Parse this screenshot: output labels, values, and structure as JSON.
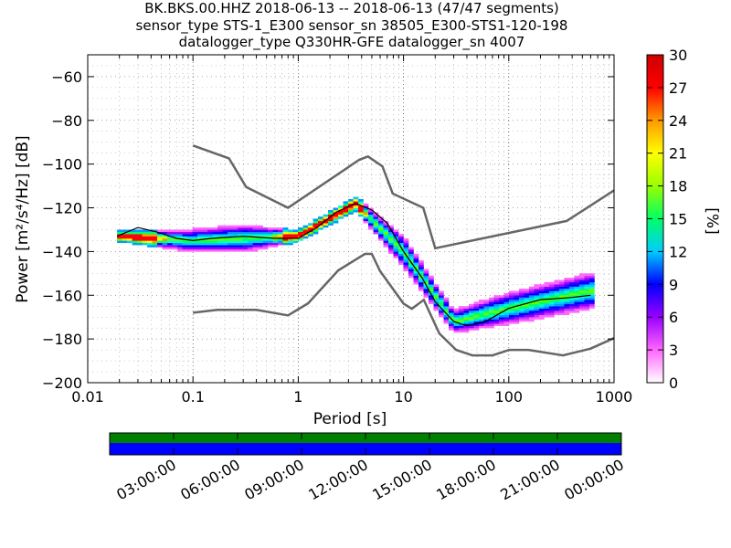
{
  "header": {
    "title_line1": "BK.BKS.00.HHZ   2018-06-13 -- 2018-06-13  (47/47 segments)",
    "title_line2": "sensor_type STS-1_E300 sensor_sn 38505_E300-STS1-120-198",
    "title_line3": "datalogger_type Q330HR-GFE datalogger_sn 4007"
  },
  "chart_data": {
    "type": "heatmap",
    "title": "BK.BKS.00.HHZ 2018-06-13 -- 2018-06-13 (47/47 segments)",
    "xlabel": "Period [s]",
    "ylabel": "Power [m²/s⁴/Hz] [dB]",
    "xscale": "log",
    "xlim": [
      0.01,
      1000
    ],
    "ylim": [
      -200,
      -50
    ],
    "x_ticks": [
      0.01,
      0.1,
      1,
      10,
      100,
      1000
    ],
    "x_tick_labels": [
      "0.01",
      "0.1",
      "1",
      "10",
      "100",
      "1000"
    ],
    "y_ticks": [
      -200,
      -180,
      -160,
      -140,
      -120,
      -100,
      -80,
      -60
    ],
    "y_tick_labels": [
      "−200",
      "−180",
      "−160",
      "−140",
      "−120",
      "−100",
      "−80",
      "−60"
    ],
    "grid": true,
    "colorbar": {
      "label": "[%]",
      "range": [
        0,
        30
      ],
      "ticks": [
        "0",
        "3",
        "6",
        "9",
        "12",
        "15",
        "18",
        "21",
        "24",
        "27",
        "30"
      ],
      "stops": [
        "#ffffff",
        "#ff66ff",
        "#9900ff",
        "#0000ff",
        "#00ccff",
        "#00ff66",
        "#99ff00",
        "#ffff00",
        "#ff9900",
        "#ff0000",
        "#cc0000"
      ]
    },
    "nhnm_high_noise_model": [
      [
        0.1,
        -91.5
      ],
      [
        0.22,
        -97.4
      ],
      [
        0.32,
        -110.5
      ],
      [
        0.8,
        -120
      ],
      [
        3.8,
        -98
      ],
      [
        4.6,
        -96.5
      ],
      [
        6.3,
        -101
      ],
      [
        7.9,
        -113.5
      ],
      [
        15.4,
        -120
      ],
      [
        20,
        -138.5
      ],
      [
        354.8,
        -126
      ],
      [
        1000,
        -112
      ]
    ],
    "nlnm_low_noise_model": [
      [
        0.1,
        -168
      ],
      [
        0.17,
        -166.7
      ],
      [
        0.4,
        -166.7
      ],
      [
        0.8,
        -169.2
      ],
      [
        1.24,
        -163.7
      ],
      [
        2.4,
        -148.6
      ],
      [
        4.3,
        -141.1
      ],
      [
        5.0,
        -141.1
      ],
      [
        6.0,
        -149
      ],
      [
        10,
        -163.8
      ],
      [
        12,
        -166.2
      ],
      [
        15.6,
        -162.1
      ],
      [
        21.9,
        -177.5
      ],
      [
        31.6,
        -185
      ],
      [
        45,
        -187.5
      ],
      [
        70,
        -187.5
      ],
      [
        101,
        -185
      ],
      [
        154,
        -185
      ],
      [
        328,
        -187.5
      ],
      [
        600,
        -184.4
      ],
      [
        1000,
        -179.6
      ]
    ],
    "mode_curve": [
      [
        0.019,
        -133
      ],
      [
        0.03,
        -129
      ],
      [
        0.045,
        -131
      ],
      [
        0.07,
        -134
      ],
      [
        0.1,
        -135
      ],
      [
        0.15,
        -134
      ],
      [
        0.3,
        -133
      ],
      [
        0.6,
        -134
      ],
      [
        1.0,
        -134
      ],
      [
        1.5,
        -129
      ],
      [
        2.3,
        -122
      ],
      [
        3.5,
        -118
      ],
      [
        5.0,
        -121
      ],
      [
        7.0,
        -127
      ],
      [
        10,
        -140
      ],
      [
        15,
        -152
      ],
      [
        20,
        -163
      ],
      [
        30,
        -172
      ],
      [
        40,
        -174
      ],
      [
        60,
        -172
      ],
      [
        100,
        -166
      ],
      [
        200,
        -162
      ],
      [
        400,
        -161
      ],
      [
        600,
        -160
      ]
    ],
    "psd_density": [
      {
        "period": 0.019,
        "db_center": -133,
        "db_width": 4
      },
      {
        "period": 0.1,
        "db_center": -135,
        "db_width": 10
      },
      {
        "period": 0.3,
        "db_center": -134,
        "db_width": 12
      },
      {
        "period": 1.0,
        "db_center": -133,
        "db_width": 5
      },
      {
        "period": 3.5,
        "db_center": -118,
        "db_width": 6
      },
      {
        "period": 10,
        "db_center": -140,
        "db_width": 14
      },
      {
        "period": 30,
        "db_center": -172,
        "db_width": 10
      },
      {
        "period": 100,
        "db_center": -166,
        "db_width": 14
      },
      {
        "period": 600,
        "db_center": -158,
        "db_width": 16
      }
    ]
  },
  "timeline": {
    "labels": [
      "03:00:00",
      "06:00:00",
      "09:00:00",
      "12:00:00",
      "15:00:00",
      "18:00:00",
      "21:00:00",
      "00:00:00"
    ],
    "top_bar_color": "#007f00",
    "bottom_bar_color": "#0000ff"
  }
}
